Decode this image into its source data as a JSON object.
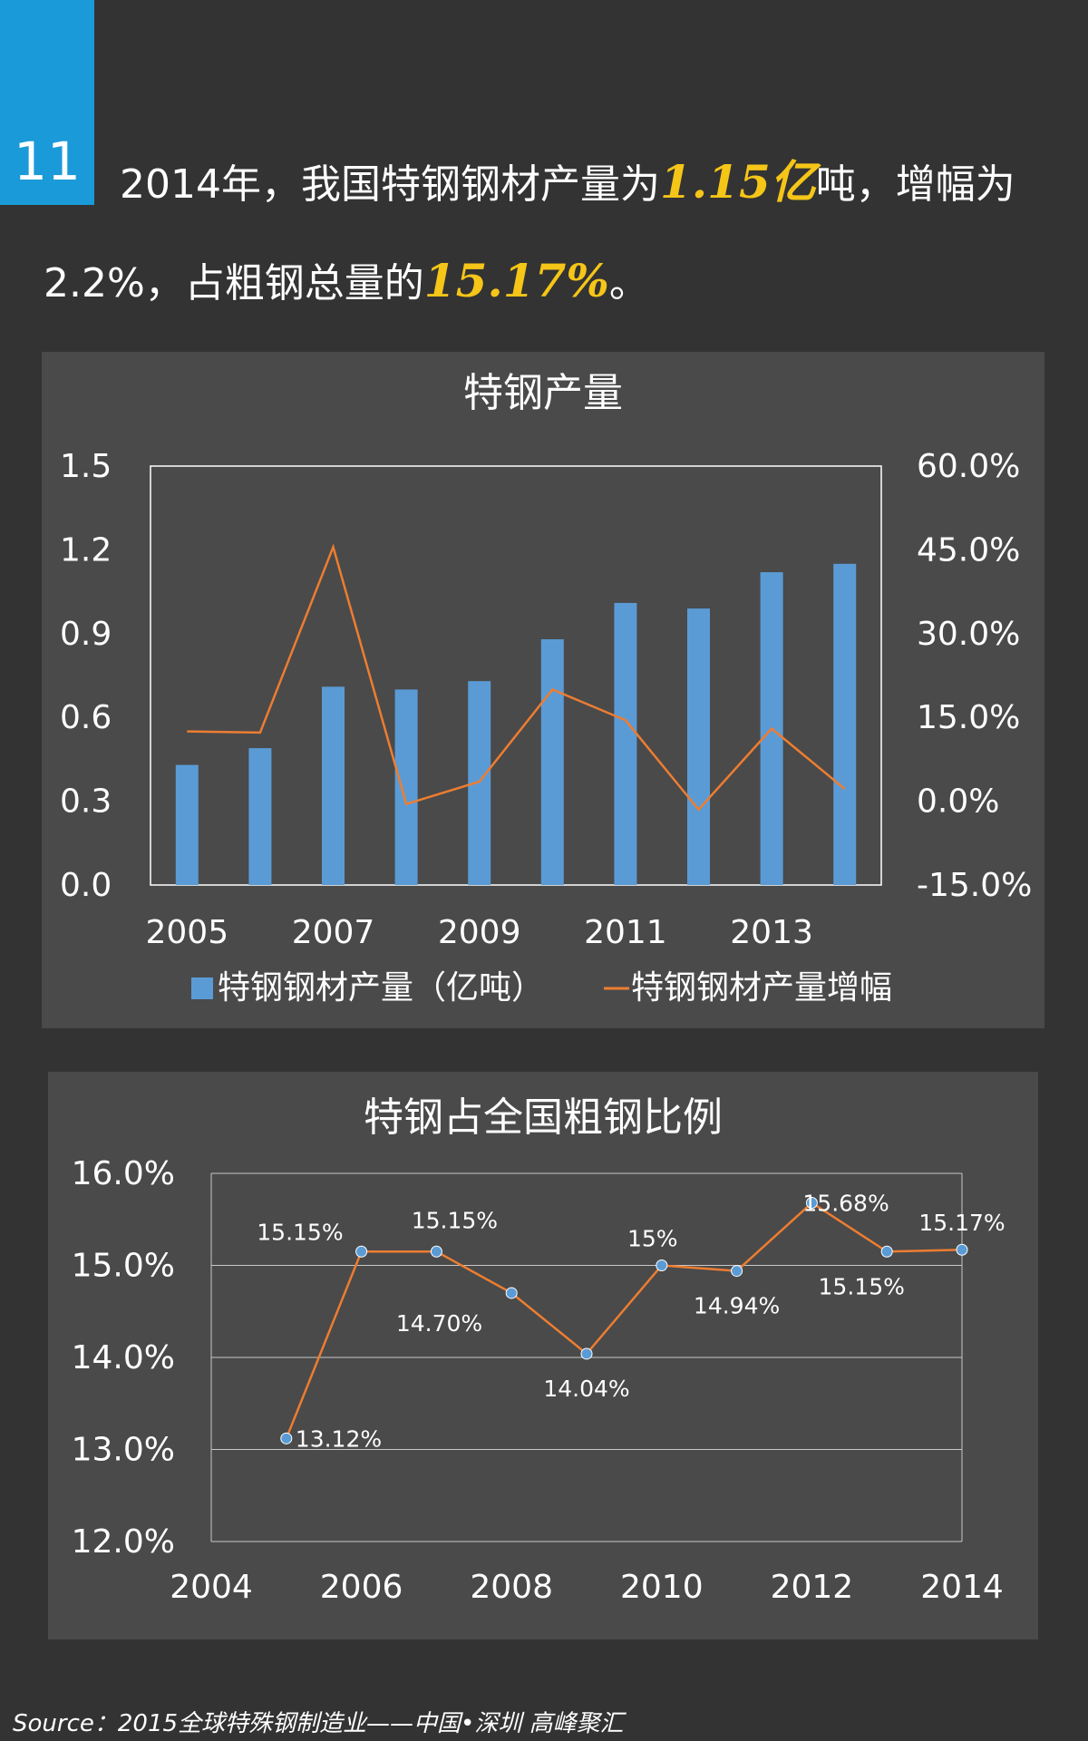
{
  "badge": {
    "number": "11"
  },
  "headline": {
    "text_1": "2014年，我国特钢钢材产量为",
    "highlight_1": "1.15亿",
    "text_2": "吨，增幅为2.2%，占粗钢总量的",
    "highlight_2": "15.17%",
    "text_3": "。"
  },
  "colors": {
    "background": "#333333",
    "panel": "#4a4a4a",
    "bar": "#5b9bd5",
    "line": "#ed7d31",
    "highlight": "#f5c518",
    "badge": "#1a9ad8"
  },
  "chart_data": [
    {
      "type": "bar",
      "title": "特钢产量",
      "categories": [
        "2005",
        "2006",
        "2007",
        "2008",
        "2009",
        "2010",
        "2011",
        "2012",
        "2013",
        "2014"
      ],
      "x_tick_labels": [
        "2005",
        "2007",
        "2009",
        "2011",
        "2013"
      ],
      "series": [
        {
          "name": "特钢钢材产量（亿吨）",
          "type": "bar",
          "axis": "left",
          "values": [
            0.43,
            0.49,
            0.71,
            0.7,
            0.73,
            0.88,
            1.01,
            0.99,
            1.12,
            1.15
          ]
        },
        {
          "name": "特钢钢材产量增幅",
          "type": "line",
          "axis": "right",
          "values": [
            12.5,
            12.3,
            45.5,
            -0.5,
            3.5,
            20.0,
            14.5,
            -1.5,
            13.0,
            2.2
          ]
        }
      ],
      "y_left": {
        "lim": [
          0,
          1.5
        ],
        "ticks": [
          "0.0",
          "0.3",
          "0.6",
          "0.9",
          "1.2",
          "1.5"
        ]
      },
      "y_right": {
        "lim": [
          -15,
          60
        ],
        "ticks": [
          "-15.0%",
          "0.0%",
          "15.0%",
          "30.0%",
          "45.0%",
          "60.0%"
        ]
      },
      "legend_position": "bottom",
      "grid": false
    },
    {
      "type": "line",
      "title": "特钢占全国粗钢比例",
      "x": [
        2005,
        2006,
        2007,
        2008,
        2009,
        2010,
        2011,
        2012,
        2013,
        2014
      ],
      "values": [
        13.12,
        15.15,
        15.15,
        14.7,
        14.04,
        15.0,
        14.94,
        15.68,
        15.15,
        15.17
      ],
      "data_labels": [
        "13.12%",
        "15.15%",
        "15.15%",
        "14.70%",
        "14.04%",
        "15%",
        "14.94%",
        "15.68%",
        "15.15%",
        "15.17%"
      ],
      "xlim": [
        2004,
        2014
      ],
      "x_ticks": [
        "2004",
        "2006",
        "2008",
        "2010",
        "2012",
        "2014"
      ],
      "ylim": [
        12,
        16
      ],
      "y_ticks": [
        "12.0%",
        "13.0%",
        "14.0%",
        "15.0%",
        "16.0%"
      ],
      "grid": true
    }
  ],
  "source": "Source：2015全球特殊钢制造业——中国•深圳 高峰聚汇"
}
